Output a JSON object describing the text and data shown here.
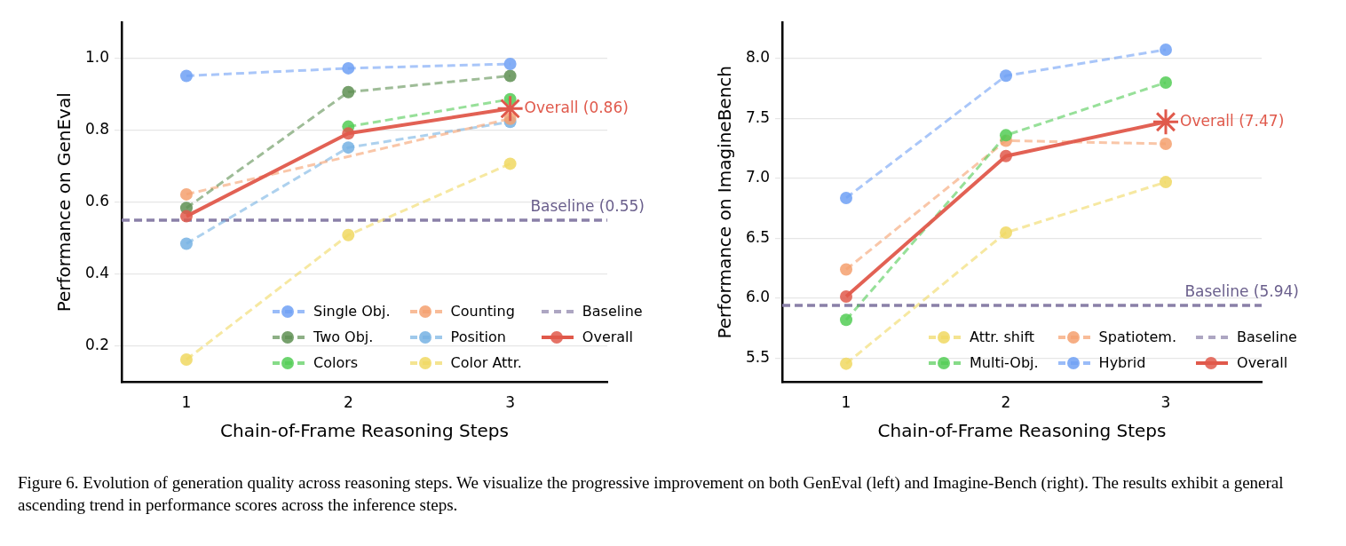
{
  "chart_data": [
    {
      "type": "line",
      "xlabel": "Chain-of-Frame Reasoning Steps",
      "ylabel": "Performance on GenEval",
      "x": [
        1,
        2,
        3
      ],
      "xlim": [
        0.6,
        3.6
      ],
      "xticks": [
        1,
        2,
        3
      ],
      "ylim": [
        0.1,
        1.1
      ],
      "yticks": [
        0.2,
        0.4,
        0.6,
        0.8,
        {
          "value": 1,
          "label": "1.0"
        }
      ],
      "grid": "y",
      "legend": "bottom right",
      "marker": "circle",
      "series": [
        {
          "name": "Single Obj.",
          "color": "#6fa0f5",
          "line_style": "dashed",
          "values": [
            0.951,
            0.972,
            0.984
          ]
        },
        {
          "name": "Two Obj.",
          "color": "#5e8f52",
          "line_style": "dashed",
          "values": [
            0.584,
            0.906,
            0.951
          ]
        },
        {
          "name": "Colors",
          "color": "#52cc55",
          "line_style": "dashed",
          "values": [
            null,
            0.81,
            0.886
          ]
        },
        {
          "name": "Counting",
          "color": "#f5a06e",
          "line_style": "dashed",
          "values": [
            0.622,
            null,
            0.832
          ]
        },
        {
          "name": "Position",
          "color": "#76b2e3",
          "line_style": "dashed",
          "values": [
            0.485,
            0.752,
            0.823
          ]
        },
        {
          "name": "Color Attr.",
          "color": "#f0d862",
          "line_style": "dashed",
          "values": [
            0.163,
            0.509,
            0.707
          ]
        },
        {
          "name": "Overall",
          "color": "#e0594b",
          "line_style": "solid",
          "values": [
            0.561,
            0.791,
            0.86
          ]
        }
      ],
      "ref_lines": [
        {
          "axis": "y",
          "value": 0.55,
          "label": "Baseline",
          "color": "#8a80a8",
          "line_style": "dashed"
        }
      ],
      "annotations": [
        {
          "text": "Overall (0.86)",
          "x": 3,
          "y": 0.86
        },
        {
          "text": "Baseline (0.55)",
          "y": 0.55
        }
      ]
    },
    {
      "type": "line",
      "xlabel": "Chain-of-Frame Reasoning Steps",
      "ylabel": "Performance on ImagineBench",
      "x": [
        1,
        2,
        3
      ],
      "xlim": [
        0.6,
        3.6
      ],
      "xticks": [
        1,
        2,
        3
      ],
      "ylim": [
        5.3,
        8.3
      ],
      "yticks": [
        5.5,
        {
          "value": 6,
          "label": "6.0"
        },
        6.5,
        {
          "value": 7,
          "label": "7.0"
        },
        7.5,
        {
          "value": 8,
          "label": "8.0"
        }
      ],
      "grid": "y",
      "legend": "bottom right",
      "marker": "circle",
      "series": [
        {
          "name": "Attr. shift",
          "color": "#f0d862",
          "line_style": "dashed",
          "values": [
            5.455,
            6.547,
            6.968
          ]
        },
        {
          "name": "Multi-Obj.",
          "color": "#52cc55",
          "line_style": "dashed",
          "values": [
            5.82,
            7.358,
            7.797
          ]
        },
        {
          "name": "Spatiotem.",
          "color": "#f5a06e",
          "line_style": "dashed",
          "values": [
            6.24,
            7.313,
            7.287
          ]
        },
        {
          "name": "Hybrid",
          "color": "#6fa0f5",
          "line_style": "dashed",
          "values": [
            6.836,
            7.854,
            8.071
          ]
        },
        {
          "name": "Overall",
          "color": "#e0594b",
          "line_style": "solid",
          "values": [
            6.014,
            7.185,
            7.47
          ]
        }
      ],
      "ref_lines": [
        {
          "axis": "y",
          "value": 5.94,
          "label": "Baseline",
          "color": "#8a80a8",
          "line_style": "dashed"
        }
      ],
      "annotations": [
        {
          "text": "Overall (7.47)",
          "x": 3,
          "y": 7.47
        },
        {
          "text": "Baseline (5.94)",
          "y": 5.94
        },
        "Figure 6. Evolution of generation quality across reasoning steps. We visualize the progressive improvement on both GenEval (left) and Imagine-Bench (right). The results exhibit a general ascending trend in performance scores across the inference steps."
      ]
    }
  ]
}
